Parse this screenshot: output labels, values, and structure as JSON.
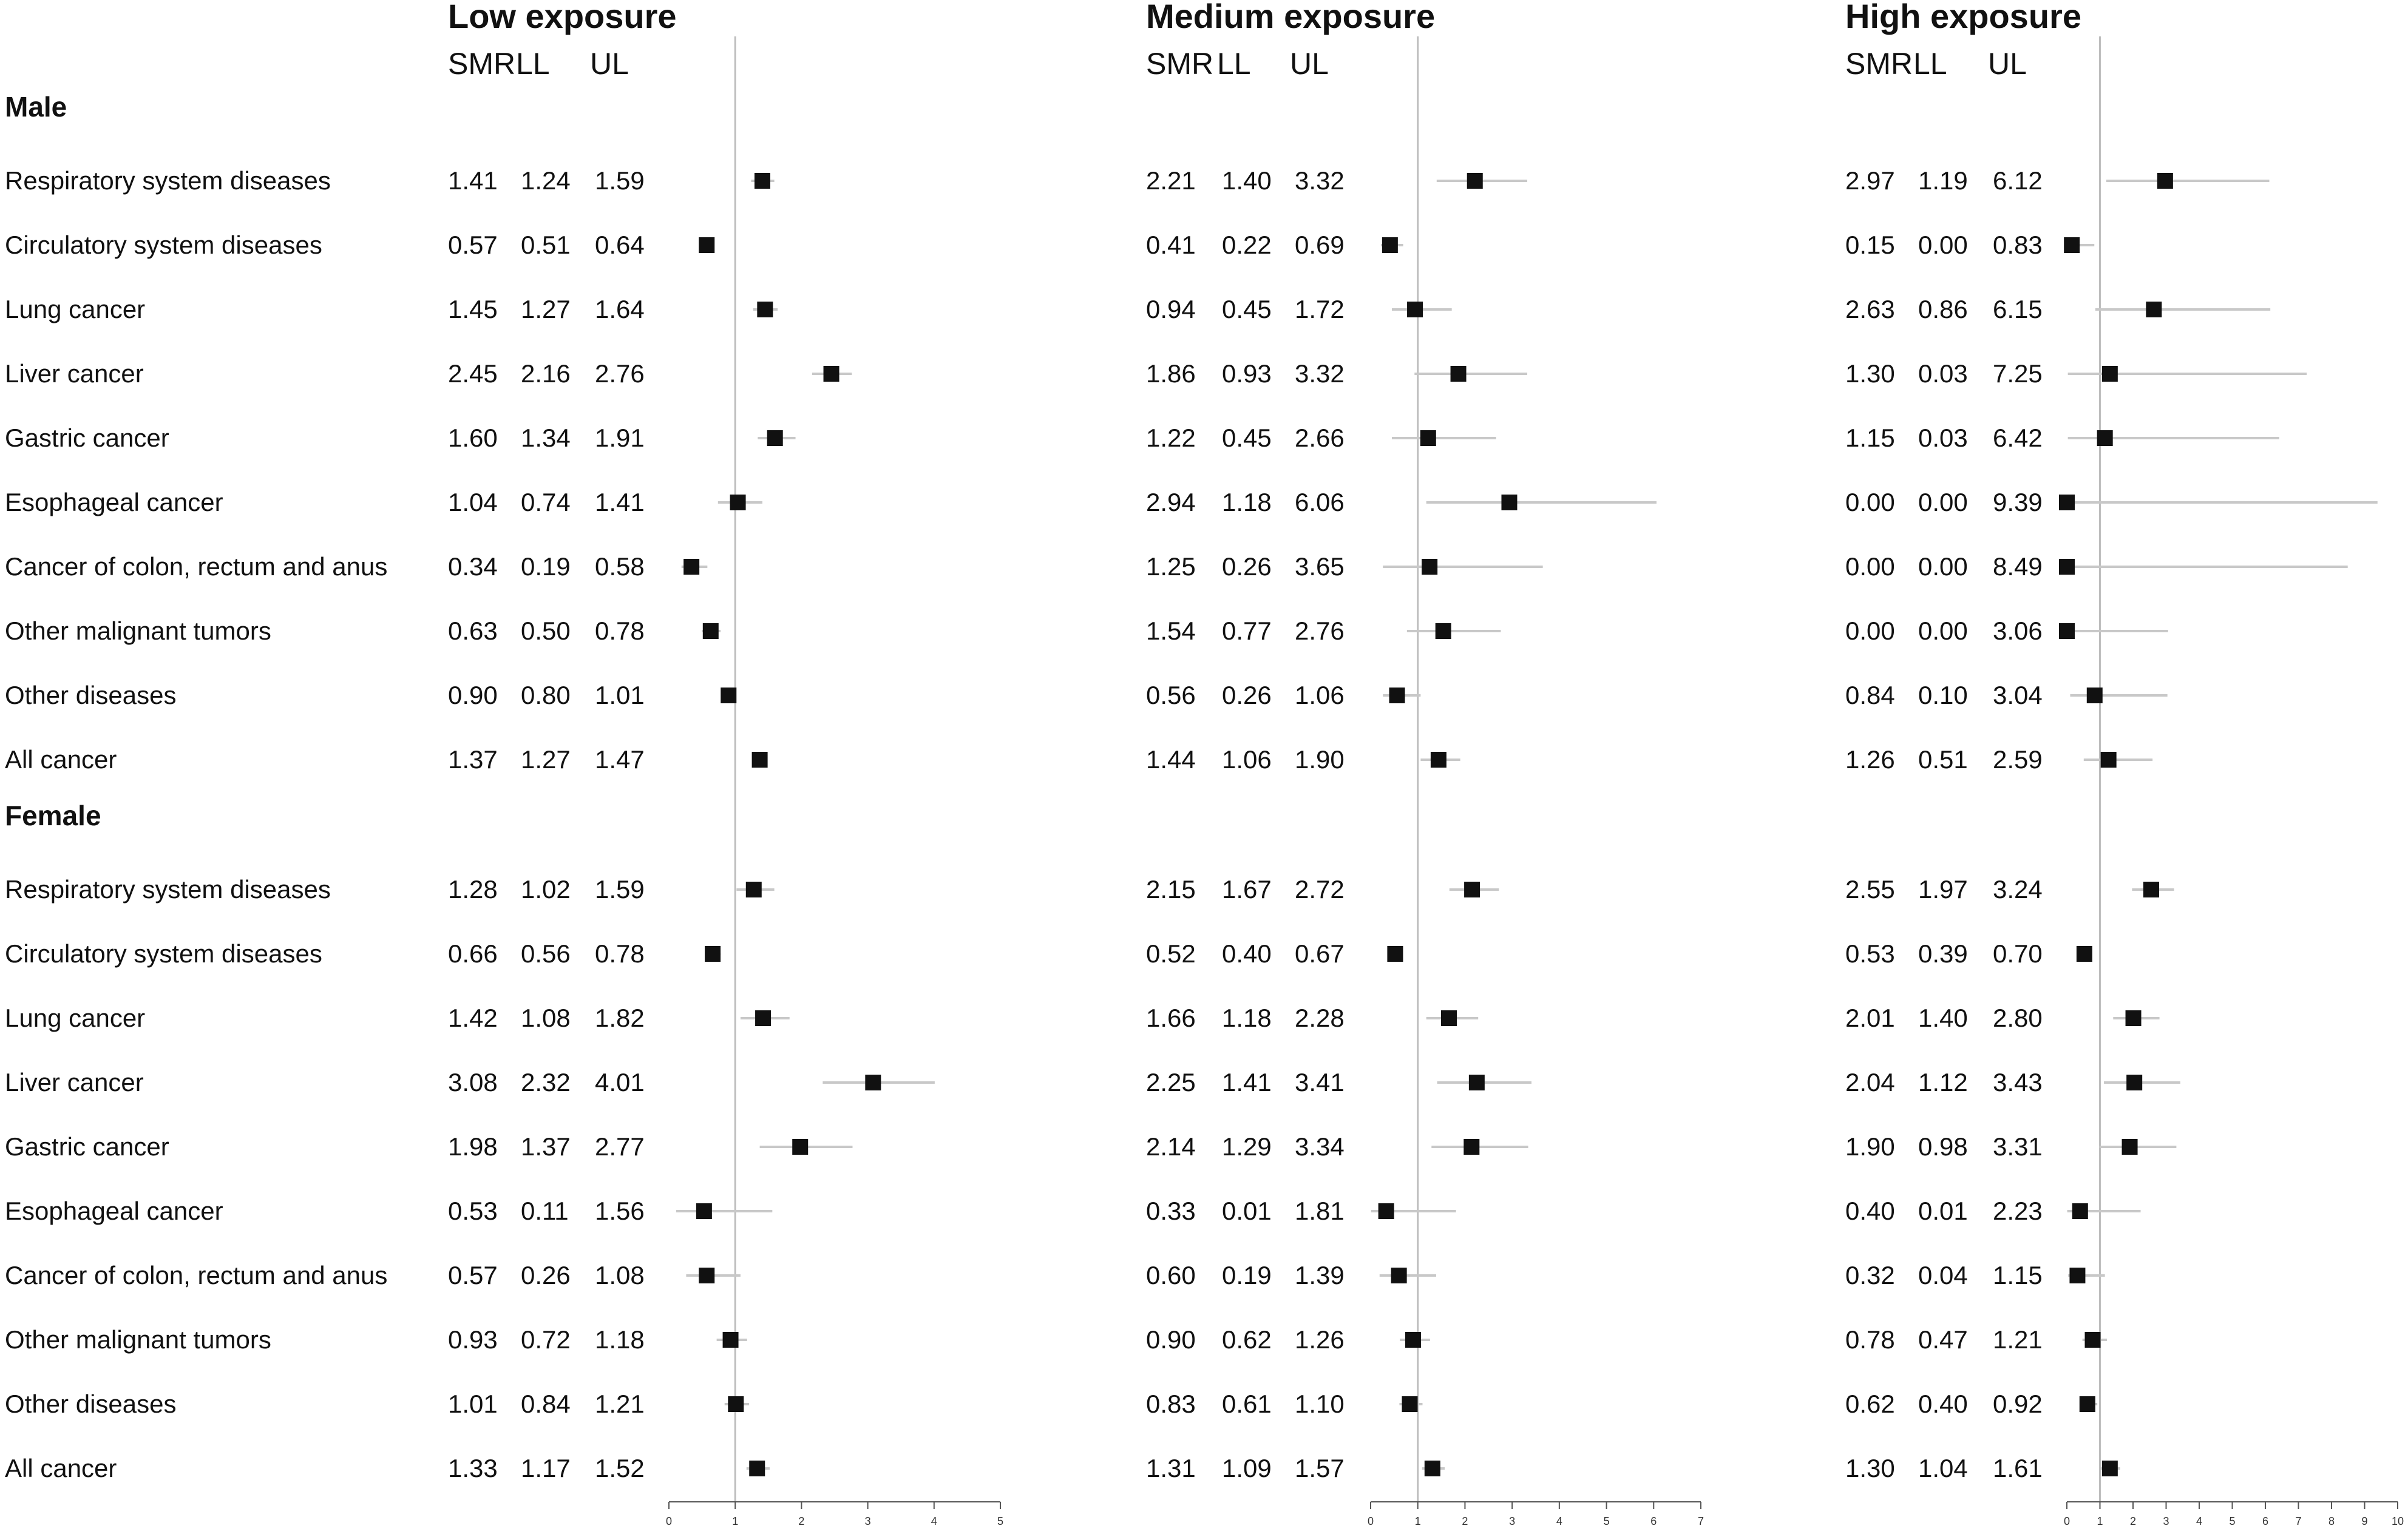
{
  "chart_data": {
    "type": "forest",
    "column_headers": [
      "SMR",
      "LL",
      "UL"
    ],
    "sections": [
      "Male",
      "Female"
    ],
    "rows": [
      {
        "section": "Male",
        "label": "Respiratory system diseases"
      },
      {
        "section": "Male",
        "label": "Circulatory system diseases"
      },
      {
        "section": "Male",
        "label": "Lung cancer"
      },
      {
        "section": "Male",
        "label": "Liver cancer"
      },
      {
        "section": "Male",
        "label": "Gastric cancer"
      },
      {
        "section": "Male",
        "label": "Esophageal cancer"
      },
      {
        "section": "Male",
        "label": "Cancer of colon, rectum and anus"
      },
      {
        "section": "Male",
        "label": "Other malignant tumors"
      },
      {
        "section": "Male",
        "label": "Other diseases"
      },
      {
        "section": "Male",
        "label": "All cancer"
      },
      {
        "section": "Female",
        "label": "Respiratory system diseases"
      },
      {
        "section": "Female",
        "label": "Circulatory system diseases"
      },
      {
        "section": "Female",
        "label": "Lung cancer"
      },
      {
        "section": "Female",
        "label": "Liver cancer"
      },
      {
        "section": "Female",
        "label": "Gastric cancer"
      },
      {
        "section": "Female",
        "label": "Esophageal cancer"
      },
      {
        "section": "Female",
        "label": "Cancer of colon, rectum and anus"
      },
      {
        "section": "Female",
        "label": "Other malignant tumors"
      },
      {
        "section": "Female",
        "label": "Other diseases"
      },
      {
        "section": "Female",
        "label": "All cancer"
      }
    ],
    "panels": [
      {
        "title": "Low exposure",
        "reference_line": 1,
        "xlim": [
          0,
          5
        ],
        "ticks": [
          "0",
          "1",
          "2",
          "3",
          "4",
          "5"
        ],
        "values": [
          [
            "1.41",
            "1.24",
            "1.59"
          ],
          [
            "0.57",
            "0.51",
            "0.64"
          ],
          [
            "1.45",
            "1.27",
            "1.64"
          ],
          [
            "2.45",
            "2.16",
            "2.76"
          ],
          [
            "1.60",
            "1.34",
            "1.91"
          ],
          [
            "1.04",
            "0.74",
            "1.41"
          ],
          [
            "0.34",
            "0.19",
            "0.58"
          ],
          [
            "0.63",
            "0.50",
            "0.78"
          ],
          [
            "0.90",
            "0.80",
            "1.01"
          ],
          [
            "1.37",
            "1.27",
            "1.47"
          ],
          [
            "1.28",
            "1.02",
            "1.59"
          ],
          [
            "0.66",
            "0.56",
            "0.78"
          ],
          [
            "1.42",
            "1.08",
            "1.82"
          ],
          [
            "3.08",
            "2.32",
            "4.01"
          ],
          [
            "1.98",
            "1.37",
            "2.77"
          ],
          [
            "0.53",
            "0.11",
            "1.56"
          ],
          [
            "0.57",
            "0.26",
            "1.08"
          ],
          [
            "0.93",
            "0.72",
            "1.18"
          ],
          [
            "1.01",
            "0.84",
            "1.21"
          ],
          [
            "1.33",
            "1.17",
            "1.52"
          ]
        ]
      },
      {
        "title": "Medium exposure",
        "reference_line": 1,
        "xlim": [
          0,
          7
        ],
        "ticks": [
          "0",
          "1",
          "2",
          "3",
          "4",
          "5",
          "6",
          "7"
        ],
        "values": [
          [
            "2.21",
            "1.40",
            "3.32"
          ],
          [
            "0.41",
            "0.22",
            "0.69"
          ],
          [
            "0.94",
            "0.45",
            "1.72"
          ],
          [
            "1.86",
            "0.93",
            "3.32"
          ],
          [
            "1.22",
            "0.45",
            "2.66"
          ],
          [
            "2.94",
            "1.18",
            "6.06"
          ],
          [
            "1.25",
            "0.26",
            "3.65"
          ],
          [
            "1.54",
            "0.77",
            "2.76"
          ],
          [
            "0.56",
            "0.26",
            "1.06"
          ],
          [
            "1.44",
            "1.06",
            "1.90"
          ],
          [
            "2.15",
            "1.67",
            "2.72"
          ],
          [
            "0.52",
            "0.40",
            "0.67"
          ],
          [
            "1.66",
            "1.18",
            "2.28"
          ],
          [
            "2.25",
            "1.41",
            "3.41"
          ],
          [
            "2.14",
            "1.29",
            "3.34"
          ],
          [
            "0.33",
            "0.01",
            "1.81"
          ],
          [
            "0.60",
            "0.19",
            "1.39"
          ],
          [
            "0.90",
            "0.62",
            "1.26"
          ],
          [
            "0.83",
            "0.61",
            "1.10"
          ],
          [
            "1.31",
            "1.09",
            "1.57"
          ]
        ]
      },
      {
        "title": "High exposure",
        "reference_line": 1,
        "xlim": [
          0,
          10
        ],
        "ticks": [
          "0",
          "1",
          "2",
          "3",
          "4",
          "5",
          "6",
          "7",
          "8",
          "9",
          "10"
        ],
        "values": [
          [
            "2.97",
            "1.19",
            "6.12"
          ],
          [
            "0.15",
            "0.00",
            "0.83"
          ],
          [
            "2.63",
            "0.86",
            "6.15"
          ],
          [
            "1.30",
            "0.03",
            "7.25"
          ],
          [
            "1.15",
            "0.03",
            "6.42"
          ],
          [
            "0.00",
            "0.00",
            "9.39"
          ],
          [
            "0.00",
            "0.00",
            "8.49"
          ],
          [
            "0.00",
            "0.00",
            "3.06"
          ],
          [
            "0.84",
            "0.10",
            "3.04"
          ],
          [
            "1.26",
            "0.51",
            "2.59"
          ],
          [
            "2.55",
            "1.97",
            "3.24"
          ],
          [
            "0.53",
            "0.39",
            "0.70"
          ],
          [
            "2.01",
            "1.40",
            "2.80"
          ],
          [
            "2.04",
            "1.12",
            "3.43"
          ],
          [
            "1.90",
            "0.98",
            "3.31"
          ],
          [
            "0.40",
            "0.01",
            "2.23"
          ],
          [
            "0.32",
            "0.04",
            "1.15"
          ],
          [
            "0.78",
            "0.47",
            "1.21"
          ],
          [
            "0.62",
            "0.40",
            "0.92"
          ],
          [
            "1.30",
            "1.04",
            "1.61"
          ]
        ]
      }
    ],
    "colors": {
      "marker": "#111111",
      "ci_line": "#c8c8c8",
      "reference_line": "#bdbdbd",
      "axis": "#555555",
      "text": "#111111"
    }
  }
}
